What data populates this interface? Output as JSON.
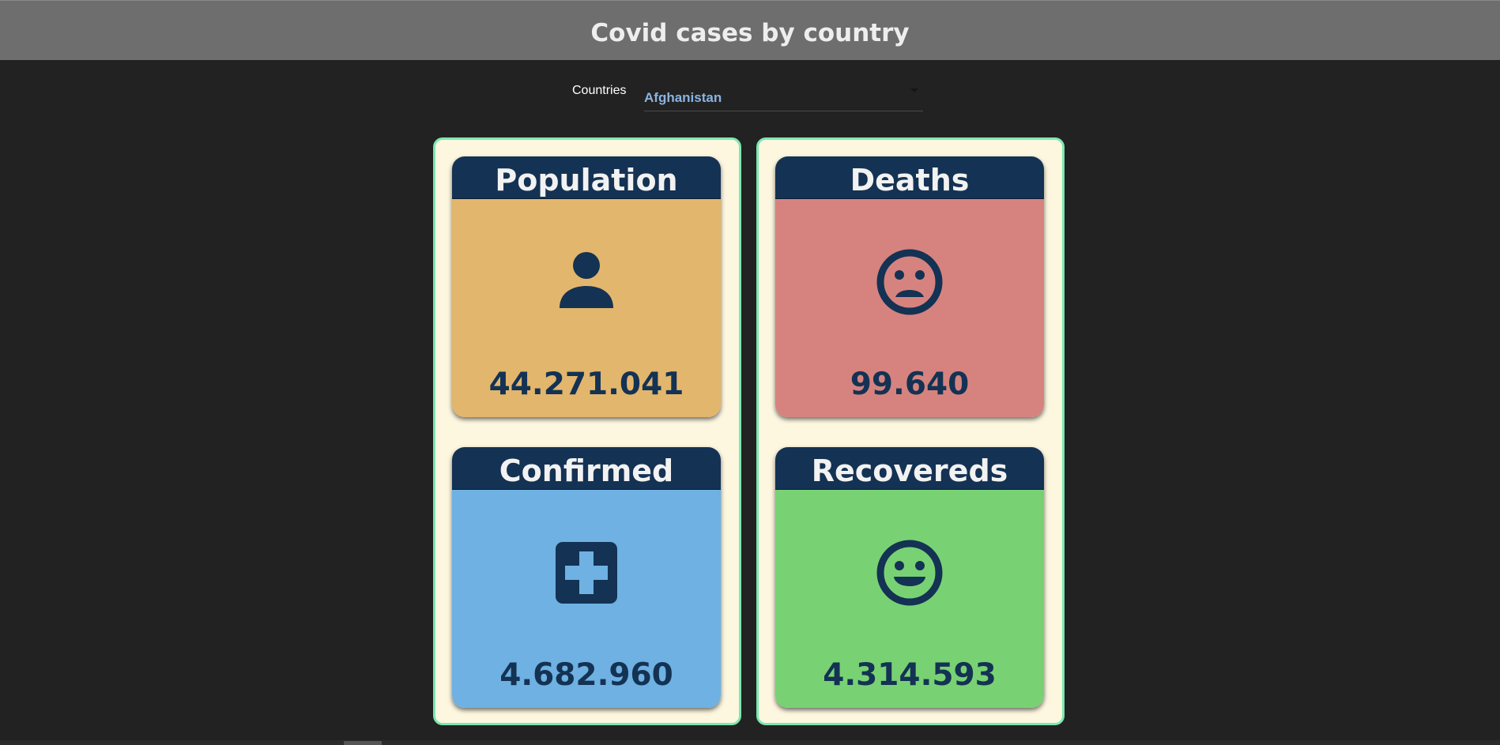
{
  "header": {
    "title": "Covid cases by country"
  },
  "filter": {
    "label": "Countries",
    "selected": "Afghanistan"
  },
  "cards": {
    "population": {
      "title": "Population",
      "value": "44.271.041",
      "icon": "person-icon",
      "color": "#e2b66c"
    },
    "deaths": {
      "title": "Deaths",
      "value": "99.640",
      "icon": "sad-face-icon",
      "color": "#d6837f"
    },
    "confirmed": {
      "title": "Confirmed",
      "value": "4.682.960",
      "icon": "medical-cross-icon",
      "color": "#6eb1e2"
    },
    "recovereds": {
      "title": "Recovereds",
      "value": "4.314.593",
      "icon": "smile-face-icon",
      "color": "#78d273"
    }
  },
  "colors": {
    "background": "#222222",
    "header": "#6e6e6e",
    "card_title": "#143253",
    "panel": "#fdf7e0",
    "panel_border": "#7be8b0"
  }
}
